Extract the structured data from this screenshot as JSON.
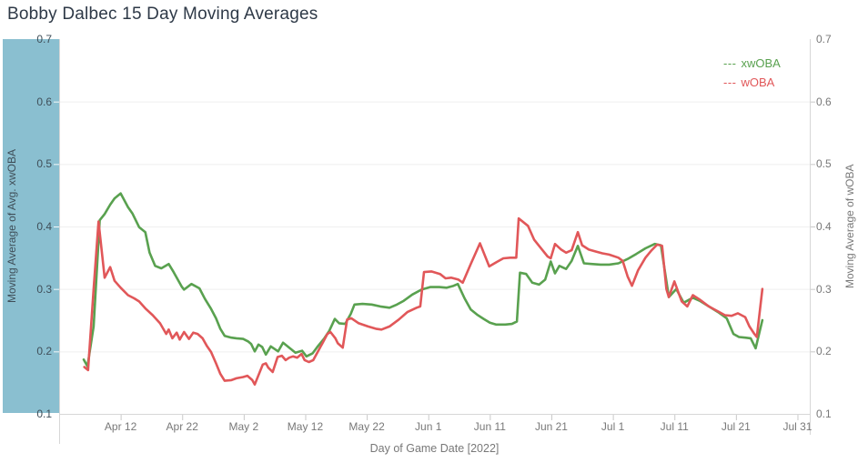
{
  "title": "Bobby Dalbec 15 Day Moving Averages",
  "colors": {
    "xwoba_line": "#59a14f",
    "woba_line": "#e15759",
    "left_axis_band": "#8abfd0",
    "gridline": "#efefef",
    "axis_line": "#d7d7d7",
    "tick_mark": "#c9c9c9",
    "tick_text": "#787878",
    "band_text": "#3f4e58"
  },
  "legend": {
    "items": [
      {
        "dash": "---",
        "label": "xwOBA",
        "color": "#59a14f"
      },
      {
        "dash": "---",
        "label": "wOBA",
        "color": "#e15759"
      }
    ]
  },
  "y_axis_left": {
    "title": "Moving Average of Avg. xwOBA",
    "ticks": [
      0.7,
      0.6,
      0.5,
      0.4,
      0.3,
      0.2,
      0.1
    ]
  },
  "y_axis_right": {
    "title": "Moving Average of wOBA",
    "ticks": [
      0.7,
      0.6,
      0.5,
      0.4,
      0.3,
      0.2,
      0.1
    ]
  },
  "x_axis": {
    "title": "Day of Game Date [2022]",
    "ticks": [
      {
        "label": "Apr 12",
        "day": 12
      },
      {
        "label": "Apr 22",
        "day": 22
      },
      {
        "label": "May 2",
        "day": 32
      },
      {
        "label": "May 12",
        "day": 42
      },
      {
        "label": "May 22",
        "day": 52
      },
      {
        "label": "Jun 1",
        "day": 62
      },
      {
        "label": "Jun 11",
        "day": 72
      },
      {
        "label": "Jun 21",
        "day": 82
      },
      {
        "label": "Jul 1",
        "day": 92
      },
      {
        "label": "Jul 11",
        "day": 102
      },
      {
        "label": "Jul 21",
        "day": 112
      },
      {
        "label": "Jul 31",
        "day": 122
      }
    ]
  },
  "chart_data": {
    "type": "line",
    "title": "Bobby Dalbec 15 Day Moving Averages",
    "xlabel": "Day of Game Date [2022]",
    "ylabel_left": "Moving Average of Avg. xwOBA",
    "ylabel_right": "Moving Average of wOBA",
    "x_unit": "day number of 2022 (Apr 1 = day 1)",
    "xlim_days": [
      2,
      124
    ],
    "ylim": [
      0.1,
      0.7
    ],
    "grid": "horizontal-only",
    "legend_position": "top-right-inside",
    "series": [
      {
        "name": "xwOBA",
        "color": "#59a14f",
        "points": [
          [
            6,
            0.187
          ],
          [
            6.6,
            0.176
          ],
          [
            7.6,
            0.24
          ],
          [
            8.6,
            0.41
          ],
          [
            9.4,
            0.42
          ],
          [
            10.3,
            0.435
          ],
          [
            11,
            0.445
          ],
          [
            12,
            0.453
          ],
          [
            13.2,
            0.431
          ],
          [
            13.9,
            0.421
          ],
          [
            15,
            0.399
          ],
          [
            16,
            0.391
          ],
          [
            16.7,
            0.358
          ],
          [
            17.6,
            0.337
          ],
          [
            18.6,
            0.333
          ],
          [
            19.8,
            0.34
          ],
          [
            20.6,
            0.327
          ],
          [
            21.9,
            0.304
          ],
          [
            22.3,
            0.299
          ],
          [
            23.5,
            0.308
          ],
          [
            24.8,
            0.301
          ],
          [
            25.7,
            0.284
          ],
          [
            26.7,
            0.268
          ],
          [
            27.5,
            0.253
          ],
          [
            28.2,
            0.236
          ],
          [
            28.9,
            0.225
          ],
          [
            30,
            0.222
          ],
          [
            30.8,
            0.221
          ],
          [
            31.9,
            0.22
          ],
          [
            32.7,
            0.216
          ],
          [
            33.2,
            0.212
          ],
          [
            33.8,
            0.2
          ],
          [
            34.4,
            0.211
          ],
          [
            35,
            0.207
          ],
          [
            35.6,
            0.195
          ],
          [
            36.4,
            0.208
          ],
          [
            37.6,
            0.2
          ],
          [
            38.4,
            0.214
          ],
          [
            39.4,
            0.206
          ],
          [
            40.4,
            0.198
          ],
          [
            41.5,
            0.201
          ],
          [
            42.2,
            0.192
          ],
          [
            43.2,
            0.197
          ],
          [
            44.1,
            0.209
          ],
          [
            45.1,
            0.221
          ],
          [
            45.9,
            0.233
          ],
          [
            46.8,
            0.252
          ],
          [
            47.5,
            0.245
          ],
          [
            48.5,
            0.244
          ],
          [
            49.4,
            0.26
          ],
          [
            50,
            0.275
          ],
          [
            51.3,
            0.276
          ],
          [
            52.8,
            0.275
          ],
          [
            54.2,
            0.272
          ],
          [
            55.7,
            0.27
          ],
          [
            56.9,
            0.275
          ],
          [
            58,
            0.281
          ],
          [
            59.4,
            0.291
          ],
          [
            60.9,
            0.299
          ],
          [
            62.3,
            0.303
          ],
          [
            63.8,
            0.303
          ],
          [
            65,
            0.302
          ],
          [
            66.1,
            0.305
          ],
          [
            66.8,
            0.308
          ],
          [
            67.9,
            0.285
          ],
          [
            68.9,
            0.267
          ],
          [
            69.9,
            0.259
          ],
          [
            71,
            0.252
          ],
          [
            72,
            0.246
          ],
          [
            73,
            0.243
          ],
          [
            74.5,
            0.243
          ],
          [
            75.6,
            0.244
          ],
          [
            76.4,
            0.248
          ],
          [
            76.9,
            0.326
          ],
          [
            77.9,
            0.324
          ],
          [
            78.9,
            0.31
          ],
          [
            80,
            0.307
          ],
          [
            81,
            0.315
          ],
          [
            81.9,
            0.344
          ],
          [
            82.6,
            0.325
          ],
          [
            83.3,
            0.337
          ],
          [
            84.4,
            0.332
          ],
          [
            85.3,
            0.345
          ],
          [
            86.3,
            0.369
          ],
          [
            87.3,
            0.341
          ],
          [
            88.5,
            0.34
          ],
          [
            90,
            0.339
          ],
          [
            91.4,
            0.339
          ],
          [
            92.9,
            0.341
          ],
          [
            94.4,
            0.348
          ],
          [
            95.8,
            0.356
          ],
          [
            97.3,
            0.365
          ],
          [
            98.8,
            0.372
          ],
          [
            99.8,
            0.37
          ],
          [
            101.1,
            0.287
          ],
          [
            102.3,
            0.3
          ],
          [
            103.5,
            0.278
          ],
          [
            105,
            0.286
          ],
          [
            106.1,
            0.281
          ],
          [
            107.6,
            0.272
          ],
          [
            109.1,
            0.263
          ],
          [
            110.5,
            0.253
          ],
          [
            111.6,
            0.228
          ],
          [
            112.5,
            0.223
          ],
          [
            113.5,
            0.222
          ],
          [
            114.4,
            0.221
          ],
          [
            115.2,
            0.205
          ],
          [
            116.3,
            0.25
          ]
        ]
      },
      {
        "name": "wOBA",
        "color": "#e15759",
        "points": [
          [
            6.1,
            0.175
          ],
          [
            6.7,
            0.17
          ],
          [
            7.6,
            0.3
          ],
          [
            8.4,
            0.408
          ],
          [
            9.4,
            0.318
          ],
          [
            10.3,
            0.335
          ],
          [
            11,
            0.313
          ],
          [
            12,
            0.302
          ],
          [
            13.2,
            0.29
          ],
          [
            14.2,
            0.285
          ],
          [
            15,
            0.28
          ],
          [
            16.1,
            0.268
          ],
          [
            17.2,
            0.258
          ],
          [
            18.4,
            0.245
          ],
          [
            19.4,
            0.228
          ],
          [
            19.8,
            0.235
          ],
          [
            20.4,
            0.221
          ],
          [
            21.1,
            0.23
          ],
          [
            21.6,
            0.219
          ],
          [
            22.3,
            0.231
          ],
          [
            23.1,
            0.22
          ],
          [
            23.8,
            0.23
          ],
          [
            24.5,
            0.228
          ],
          [
            25.3,
            0.221
          ],
          [
            26,
            0.209
          ],
          [
            26.7,
            0.199
          ],
          [
            27.5,
            0.181
          ],
          [
            28.2,
            0.164
          ],
          [
            28.9,
            0.153
          ],
          [
            30,
            0.154
          ],
          [
            30.8,
            0.157
          ],
          [
            31.9,
            0.159
          ],
          [
            32.6,
            0.161
          ],
          [
            33.4,
            0.154
          ],
          [
            33.8,
            0.147
          ],
          [
            35.1,
            0.179
          ],
          [
            35.6,
            0.181
          ],
          [
            36,
            0.174
          ],
          [
            36.7,
            0.167
          ],
          [
            37.5,
            0.191
          ],
          [
            38.2,
            0.193
          ],
          [
            38.8,
            0.186
          ],
          [
            39.4,
            0.19
          ],
          [
            40,
            0.192
          ],
          [
            40.7,
            0.19
          ],
          [
            41.4,
            0.196
          ],
          [
            41.9,
            0.186
          ],
          [
            42.6,
            0.183
          ],
          [
            43.3,
            0.186
          ],
          [
            44.4,
            0.206
          ],
          [
            44.8,
            0.213
          ],
          [
            45.6,
            0.228
          ],
          [
            46.1,
            0.231
          ],
          [
            46.9,
            0.221
          ],
          [
            47.3,
            0.213
          ],
          [
            48.1,
            0.206
          ],
          [
            48.8,
            0.251
          ],
          [
            49.5,
            0.253
          ],
          [
            50.7,
            0.245
          ],
          [
            52.2,
            0.24
          ],
          [
            53.6,
            0.236
          ],
          [
            54.4,
            0.235
          ],
          [
            55.7,
            0.24
          ],
          [
            57.2,
            0.251
          ],
          [
            58.6,
            0.263
          ],
          [
            60.1,
            0.27
          ],
          [
            60.7,
            0.272
          ],
          [
            61.3,
            0.327
          ],
          [
            62.5,
            0.328
          ],
          [
            63.9,
            0.324
          ],
          [
            64.8,
            0.317
          ],
          [
            65.7,
            0.318
          ],
          [
            66.9,
            0.315
          ],
          [
            67.6,
            0.31
          ],
          [
            68.9,
            0.34
          ],
          [
            70.4,
            0.373
          ],
          [
            71.9,
            0.336
          ],
          [
            73.1,
            0.343
          ],
          [
            74.2,
            0.349
          ],
          [
            75.3,
            0.35
          ],
          [
            76.3,
            0.35
          ],
          [
            76.7,
            0.413
          ],
          [
            78.2,
            0.401
          ],
          [
            79.2,
            0.379
          ],
          [
            80.4,
            0.364
          ],
          [
            81.4,
            0.352
          ],
          [
            81.9,
            0.349
          ],
          [
            82.6,
            0.372
          ],
          [
            83.6,
            0.363
          ],
          [
            84.4,
            0.358
          ],
          [
            85.3,
            0.362
          ],
          [
            86.3,
            0.391
          ],
          [
            87,
            0.37
          ],
          [
            88.1,
            0.363
          ],
          [
            89.2,
            0.36
          ],
          [
            90.3,
            0.357
          ],
          [
            91.4,
            0.355
          ],
          [
            92.9,
            0.35
          ],
          [
            93.6,
            0.345
          ],
          [
            94.4,
            0.32
          ],
          [
            95.1,
            0.305
          ],
          [
            96.1,
            0.33
          ],
          [
            97.3,
            0.35
          ],
          [
            98.3,
            0.362
          ],
          [
            99.2,
            0.371
          ],
          [
            100,
            0.369
          ],
          [
            100.7,
            0.3
          ],
          [
            101.1,
            0.287
          ],
          [
            102,
            0.312
          ],
          [
            103.2,
            0.28
          ],
          [
            104.1,
            0.272
          ],
          [
            105,
            0.29
          ],
          [
            106.1,
            0.283
          ],
          [
            107.6,
            0.272
          ],
          [
            109.1,
            0.264
          ],
          [
            110.2,
            0.258
          ],
          [
            111.3,
            0.257
          ],
          [
            112.3,
            0.261
          ],
          [
            113.5,
            0.255
          ],
          [
            114.2,
            0.24
          ],
          [
            115,
            0.228
          ],
          [
            115.4,
            0.223
          ],
          [
            116.3,
            0.3
          ]
        ]
      }
    ]
  }
}
